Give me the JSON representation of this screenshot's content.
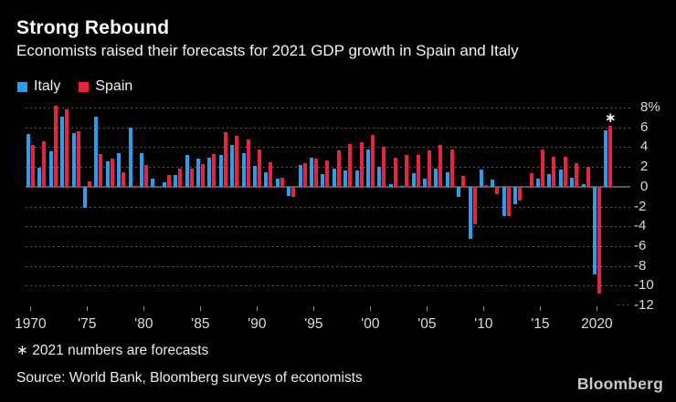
{
  "header": {
    "title": "Strong Rebound",
    "subtitle": "Economists raised their forecasts for 2021 GDP growth in Spain and Italy"
  },
  "legend": {
    "items": [
      {
        "label": "Italy",
        "color": "#2D9CEB"
      },
      {
        "label": "Spain",
        "color": "#E5243D"
      }
    ]
  },
  "chart_data": {
    "type": "bar",
    "title": "Strong Rebound",
    "subtitle": "Economists raised their forecasts for 2021 GDP growth in Spain and Italy",
    "unit": "GDP growth, %",
    "categories": [
      1970,
      1971,
      1972,
      1973,
      1974,
      1975,
      1976,
      1977,
      1978,
      1979,
      1980,
      1981,
      1982,
      1983,
      1984,
      1985,
      1986,
      1987,
      1988,
      1989,
      1990,
      1991,
      1992,
      1993,
      1994,
      1995,
      1996,
      1997,
      1998,
      1999,
      2000,
      2001,
      2002,
      2003,
      2004,
      2005,
      2006,
      2007,
      2008,
      2009,
      2010,
      2011,
      2012,
      2013,
      2014,
      2015,
      2016,
      2017,
      2018,
      2019,
      2020,
      2021
    ],
    "series": [
      {
        "name": "Italy",
        "color": "#2D9CEB",
        "values": [
          5.3,
          1.9,
          3.6,
          7.1,
          5.4,
          -2.1,
          7.1,
          2.6,
          3.4,
          6.0,
          3.4,
          0.8,
          0.4,
          1.2,
          3.2,
          2.8,
          2.9,
          3.2,
          4.2,
          3.4,
          2.1,
          1.5,
          0.8,
          -0.9,
          2.2,
          2.9,
          1.3,
          1.8,
          1.6,
          1.6,
          3.8,
          2.0,
          0.3,
          0.1,
          1.4,
          0.8,
          1.8,
          1.5,
          -1.0,
          -5.3,
          1.7,
          0.7,
          -3.0,
          -1.8,
          0.0,
          0.8,
          1.3,
          1.7,
          0.9,
          0.3,
          -8.9,
          5.7
        ]
      },
      {
        "name": "Spain",
        "color": "#E5243D",
        "values": [
          4.2,
          4.6,
          8.2,
          7.8,
          5.6,
          0.5,
          3.3,
          2.8,
          1.5,
          0.1,
          2.2,
          -0.1,
          1.2,
          1.8,
          1.8,
          2.3,
          3.3,
          5.5,
          5.1,
          4.8,
          3.8,
          2.5,
          0.9,
          -1.0,
          2.4,
          2.8,
          2.7,
          3.7,
          4.3,
          4.5,
          5.2,
          4.0,
          2.9,
          3.2,
          3.2,
          3.7,
          4.2,
          3.8,
          1.1,
          -3.8,
          0.2,
          -0.8,
          -3.0,
          -1.4,
          1.4,
          3.8,
          3.0,
          3.0,
          2.4,
          2.0,
          -10.8,
          6.2
        ]
      }
    ],
    "ylim": [
      -12,
      8
    ],
    "y_ticks": [
      8,
      6,
      4,
      2,
      0,
      -2,
      -4,
      -6,
      -8,
      -10,
      -12
    ],
    "y_tick_labels": [
      "8%",
      "6",
      "4",
      "2",
      "0",
      "-2",
      "-4",
      "-6",
      "-8",
      "-10",
      "-12"
    ],
    "x_tick_labels": [
      "1970",
      "'75",
      "'80",
      "'85",
      "'90",
      "'95",
      "'00",
      "'05",
      "'10",
      "'15",
      "2020"
    ],
    "x_tick_years": [
      1970,
      1975,
      1980,
      1985,
      1990,
      1995,
      2000,
      2005,
      2010,
      2015,
      2020
    ],
    "grid": "dotted horizontal, zero axis solid",
    "legend_position": "top-left",
    "annotation": {
      "text": "∗",
      "year": 2021,
      "series": "Spain",
      "meaning": "forecast marker"
    }
  },
  "footer": {
    "footnote": "∗ 2021 numbers are forecasts",
    "source": "Source: World Bank, Bloomberg surveys of economists",
    "logo": "Bloomberg"
  }
}
